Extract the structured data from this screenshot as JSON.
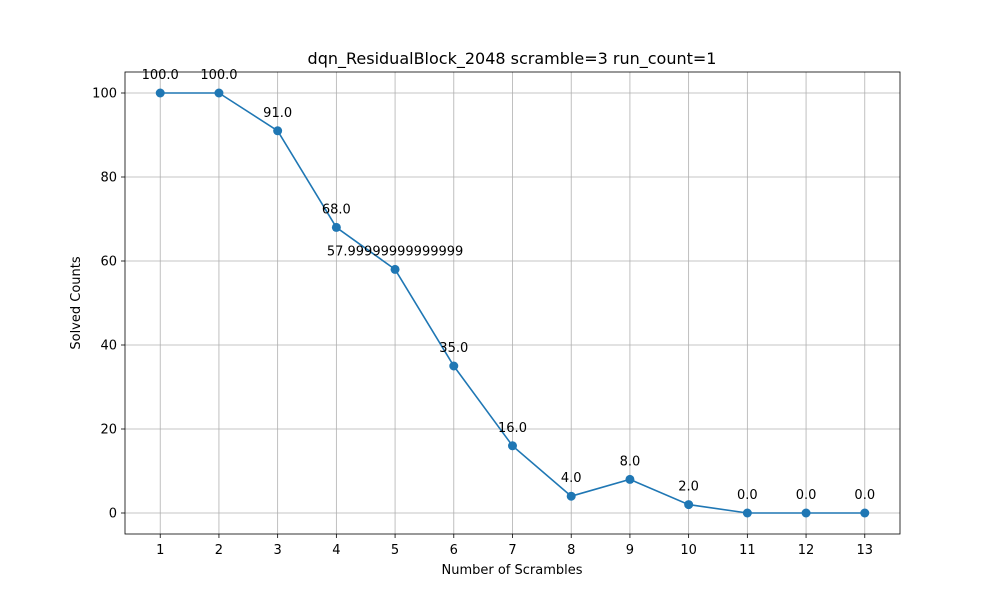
{
  "chart_data": {
    "type": "line",
    "title": "dqn_ResidualBlock_2048 scramble=3 run_count=1",
    "xlabel": "Number of Scrambles",
    "ylabel": "Solved Counts",
    "x": [
      1,
      2,
      3,
      4,
      5,
      6,
      7,
      8,
      9,
      10,
      11,
      12,
      13
    ],
    "xticks": [
      "1",
      "2",
      "3",
      "4",
      "5",
      "6",
      "7",
      "8",
      "9",
      "10",
      "11",
      "12",
      "13"
    ],
    "yticks": [
      "0",
      "20",
      "40",
      "60",
      "80",
      "100"
    ],
    "ytick_values": [
      0,
      20,
      40,
      60,
      80,
      100
    ],
    "xlim": [
      0.4,
      13.6
    ],
    "ylim": [
      -5,
      105
    ],
    "grid": true,
    "series": [
      {
        "color": "#1f77b4",
        "values": [
          100.0,
          100.0,
          91.0,
          68.0,
          57.99999999999999,
          35.0,
          16.0,
          4.0,
          8.0,
          2.0,
          0.0,
          0.0,
          0.0
        ],
        "labels": [
          "100.0",
          "100.0",
          "91.0",
          "68.0",
          "57.99999999999999",
          "35.0",
          "16.0",
          "4.0",
          "8.0",
          "2.0",
          "0.0",
          "0.0",
          "0.0"
        ]
      }
    ]
  }
}
